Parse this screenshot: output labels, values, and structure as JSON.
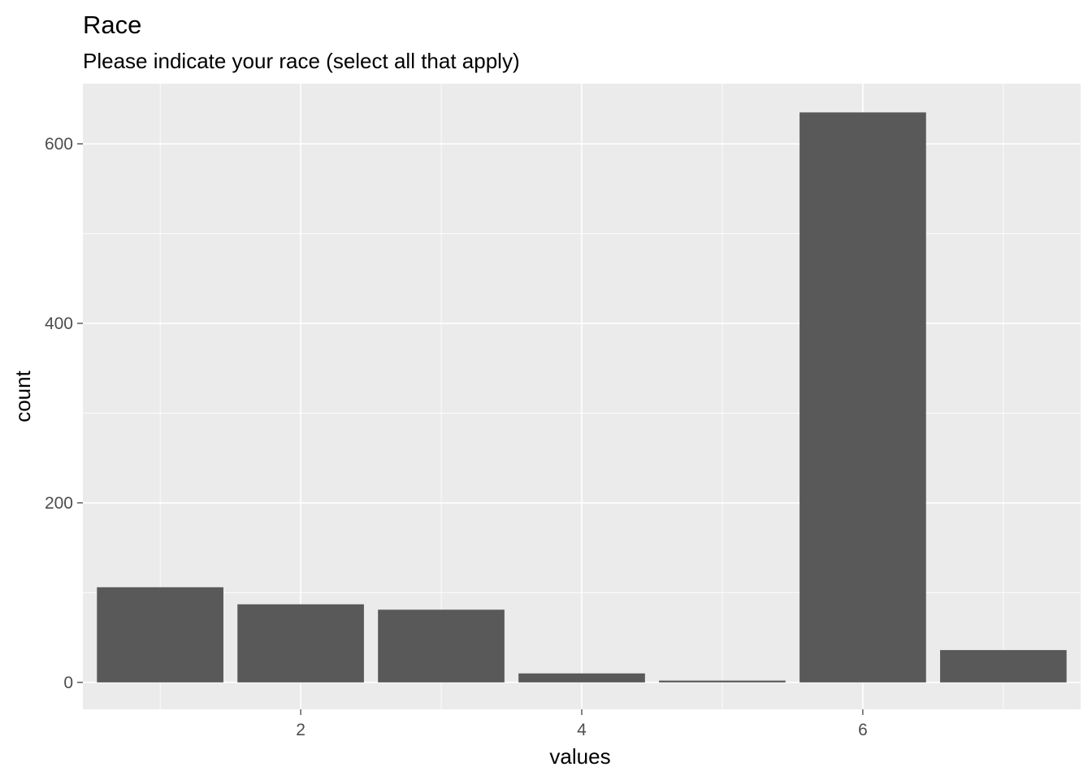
{
  "chart_data": {
    "type": "bar",
    "title": "Race",
    "subtitle": "Please indicate your race (select all that apply)",
    "xlabel": "values",
    "ylabel": "count",
    "x": [
      1,
      2,
      3,
      4,
      5,
      6,
      7
    ],
    "values": [
      106,
      87,
      81,
      10,
      2,
      635,
      36
    ],
    "xlim": [
      0.45,
      7.55
    ],
    "ylim": [
      -30,
      667
    ],
    "x_ticks": [
      2,
      4,
      6
    ],
    "x_tick_labels": [
      "2",
      "4",
      "6"
    ],
    "y_ticks": [
      0,
      200,
      400,
      600
    ],
    "y_tick_labels": [
      "0",
      "200",
      "400",
      "600"
    ],
    "grid": true,
    "legend": "none",
    "colors": {
      "panel": "#ebebeb",
      "grid": "#ffffff",
      "bar": "#595959",
      "tick_text": "#4d4d4d",
      "tick_mark": "#333333"
    }
  }
}
